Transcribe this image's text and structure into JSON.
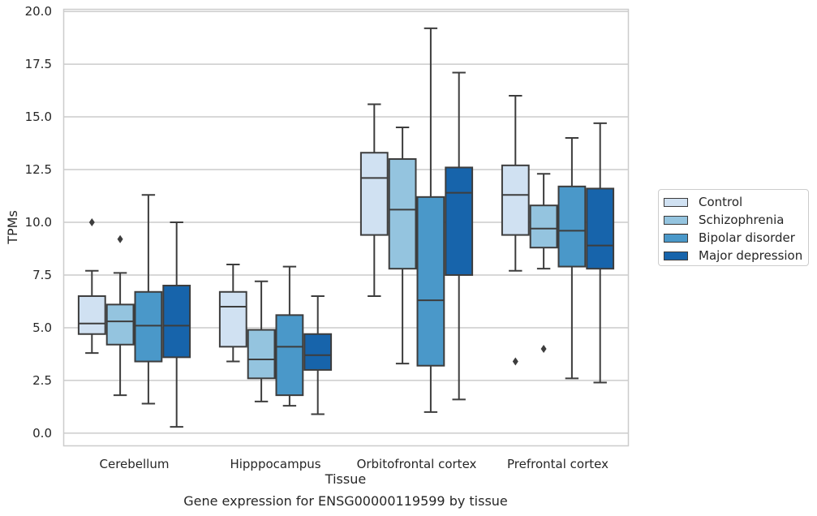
{
  "chart_data": {
    "type": "box",
    "title": "Gene expression for ENSG00000119599 by tissue",
    "xlabel": "Tissue",
    "ylabel": "TPMs",
    "ylim": [
      -0.6,
      20.1
    ],
    "yticks": [
      "0.0",
      "2.5",
      "5.0",
      "7.5",
      "10.0",
      "12.5",
      "15.0",
      "17.5",
      "20.0"
    ],
    "grid": "horizontal",
    "legend_position": "right",
    "categories": [
      "Cerebellum",
      "Hipppocampus",
      "Orbitofrontal cortex",
      "Prefrontal cortex"
    ],
    "series": [
      {
        "name": "Control",
        "color": "#d0e1f2",
        "boxes": [
          {
            "whisker_low": 3.8,
            "q1": 4.7,
            "median": 5.2,
            "q3": 6.5,
            "whisker_high": 7.7,
            "outliers": [
              10.0
            ]
          },
          {
            "whisker_low": 3.4,
            "q1": 4.1,
            "median": 6.0,
            "q3": 6.7,
            "whisker_high": 8.0,
            "outliers": []
          },
          {
            "whisker_low": 6.5,
            "q1": 9.4,
            "median": 12.1,
            "q3": 13.3,
            "whisker_high": 15.6,
            "outliers": []
          },
          {
            "whisker_low": 7.7,
            "q1": 9.4,
            "median": 11.3,
            "q3": 12.7,
            "whisker_high": 16.0,
            "outliers": [
              3.4
            ]
          }
        ]
      },
      {
        "name": "Schizophrenia",
        "color": "#94c4df",
        "boxes": [
          {
            "whisker_low": 1.8,
            "q1": 4.2,
            "median": 5.3,
            "q3": 6.1,
            "whisker_high": 7.6,
            "outliers": [
              9.2
            ]
          },
          {
            "whisker_low": 1.5,
            "q1": 2.6,
            "median": 3.5,
            "q3": 4.9,
            "whisker_high": 7.2,
            "outliers": []
          },
          {
            "whisker_low": 3.3,
            "q1": 7.8,
            "median": 10.6,
            "q3": 13.0,
            "whisker_high": 14.5,
            "outliers": []
          },
          {
            "whisker_low": 7.8,
            "q1": 8.8,
            "median": 9.7,
            "q3": 10.8,
            "whisker_high": 12.3,
            "outliers": [
              4.0
            ]
          }
        ]
      },
      {
        "name": "Bipolar disorder",
        "color": "#4a98c9",
        "boxes": [
          {
            "whisker_low": 1.4,
            "q1": 3.4,
            "median": 5.1,
            "q3": 6.7,
            "whisker_high": 11.3,
            "outliers": []
          },
          {
            "whisker_low": 1.3,
            "q1": 1.8,
            "median": 4.1,
            "q3": 5.6,
            "whisker_high": 7.9,
            "outliers": []
          },
          {
            "whisker_low": 1.0,
            "q1": 3.2,
            "median": 6.3,
            "q3": 11.2,
            "whisker_high": 19.2,
            "outliers": []
          },
          {
            "whisker_low": 2.6,
            "q1": 7.9,
            "median": 9.6,
            "q3": 11.7,
            "whisker_high": 14.0,
            "outliers": []
          }
        ]
      },
      {
        "name": "Major depression",
        "color": "#1764ab",
        "boxes": [
          {
            "whisker_low": 0.3,
            "q1": 3.6,
            "median": 5.1,
            "q3": 7.0,
            "whisker_high": 10.0,
            "outliers": []
          },
          {
            "whisker_low": 0.9,
            "q1": 3.0,
            "median": 3.7,
            "q3": 4.7,
            "whisker_high": 6.5,
            "outliers": []
          },
          {
            "whisker_low": 1.6,
            "q1": 7.5,
            "median": 11.4,
            "q3": 12.6,
            "whisker_high": 17.1,
            "outliers": []
          },
          {
            "whisker_low": 2.4,
            "q1": 7.8,
            "median": 8.9,
            "q3": 11.6,
            "whisker_high": 14.7,
            "outliers": []
          }
        ]
      }
    ]
  }
}
